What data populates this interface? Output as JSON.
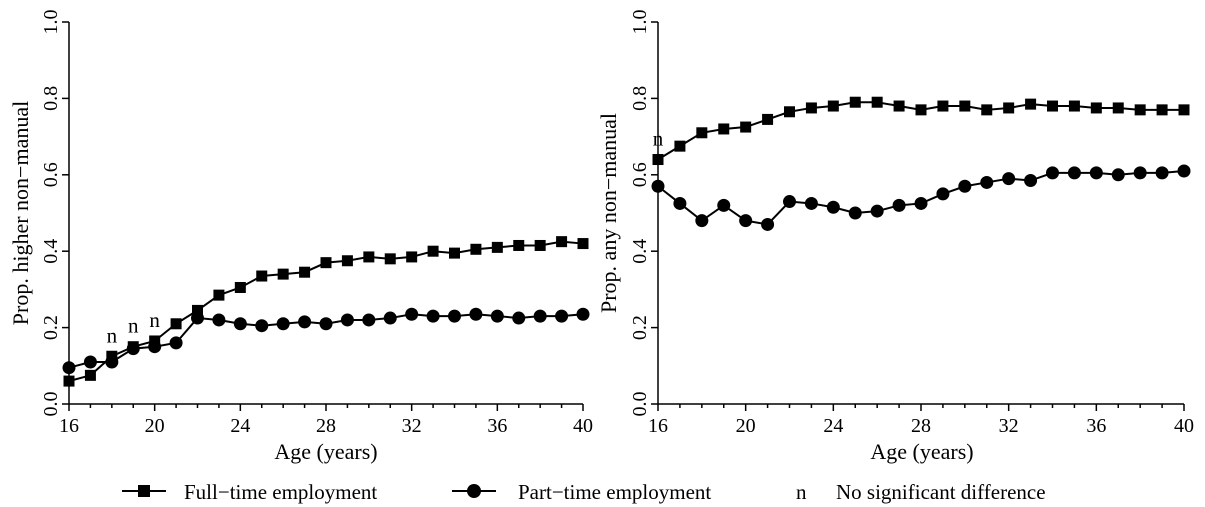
{
  "chart_data": [
    {
      "type": "line",
      "ylabel": "Prop. higher non−manual",
      "xlabel": "Age (years)",
      "xlim": [
        16,
        40
      ],
      "ylim": [
        0,
        1
      ],
      "xticks": [
        "16",
        "20",
        "24",
        "28",
        "32",
        "36",
        "40"
      ],
      "yticks": [
        "0.0",
        "0.2",
        "0.4",
        "0.6",
        "0.8",
        "1.0"
      ],
      "x": [
        16,
        17,
        18,
        19,
        20,
        21,
        22,
        23,
        24,
        25,
        26,
        27,
        28,
        29,
        30,
        31,
        32,
        33,
        34,
        35,
        36,
        37,
        38,
        39,
        40
      ],
      "series": [
        {
          "name": "Full−time employment",
          "marker": "square",
          "values": [
            0.06,
            0.075,
            0.125,
            0.15,
            0.165,
            0.21,
            0.245,
            0.285,
            0.305,
            0.335,
            0.34,
            0.345,
            0.37,
            0.375,
            0.385,
            0.38,
            0.385,
            0.4,
            0.395,
            0.405,
            0.41,
            0.415,
            0.415,
            0.425,
            0.42
          ]
        },
        {
          "name": "Part−time employment",
          "marker": "circle",
          "values": [
            0.095,
            0.11,
            0.11,
            0.145,
            0.15,
            0.16,
            0.225,
            0.22,
            0.21,
            0.205,
            0.21,
            0.215,
            0.21,
            0.22,
            0.22,
            0.225,
            0.235,
            0.23,
            0.23,
            0.235,
            0.23,
            0.225,
            0.23,
            0.23,
            0.235
          ]
        }
      ],
      "annotations": [
        {
          "text": "n",
          "x": 18,
          "y": 0.125
        },
        {
          "text": "n",
          "x": 19,
          "y": 0.15
        },
        {
          "text": "n",
          "x": 20,
          "y": 0.165
        }
      ]
    },
    {
      "type": "line",
      "ylabel": "Prop. any non−manual",
      "xlabel": "Age (years)",
      "xlim": [
        16,
        40
      ],
      "ylim": [
        0,
        1
      ],
      "xticks": [
        "16",
        "20",
        "24",
        "28",
        "32",
        "36",
        "40"
      ],
      "yticks": [
        "0.0",
        "0.2",
        "0.4",
        "0.6",
        "0.8",
        "1.0"
      ],
      "x": [
        16,
        17,
        18,
        19,
        20,
        21,
        22,
        23,
        24,
        25,
        26,
        27,
        28,
        29,
        30,
        31,
        32,
        33,
        34,
        35,
        36,
        37,
        38,
        39,
        40
      ],
      "series": [
        {
          "name": "Full−time employment",
          "marker": "square",
          "values": [
            0.64,
            0.675,
            0.71,
            0.72,
            0.725,
            0.745,
            0.765,
            0.775,
            0.78,
            0.79,
            0.79,
            0.78,
            0.77,
            0.78,
            0.78,
            0.77,
            0.775,
            0.785,
            0.78,
            0.78,
            0.775,
            0.775,
            0.77,
            0.77,
            0.77
          ]
        },
        {
          "name": "Part−time employment",
          "marker": "circle",
          "values": [
            0.57,
            0.525,
            0.48,
            0.52,
            0.48,
            0.47,
            0.53,
            0.525,
            0.515,
            0.5,
            0.505,
            0.52,
            0.525,
            0.55,
            0.57,
            0.58,
            0.59,
            0.585,
            0.605,
            0.605,
            0.605,
            0.6,
            0.605,
            0.605,
            0.61
          ]
        }
      ],
      "annotations": [
        {
          "text": "n",
          "x": 16,
          "y": 0.64
        }
      ]
    }
  ],
  "legend": {
    "items": [
      {
        "label": "Full−time employment",
        "marker": "square"
      },
      {
        "label": "Part−time employment",
        "marker": "circle"
      }
    ],
    "note_symbol": "n",
    "note_label": "No significant difference"
  }
}
